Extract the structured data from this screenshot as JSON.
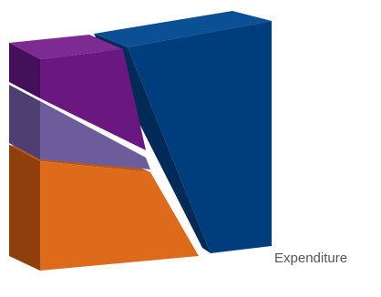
{
  "chart_data": {
    "type": "pie",
    "title": "",
    "label": "Expenditure",
    "slices": [
      {
        "value": 48,
        "color": "#003d7c",
        "side_color": "#002a58",
        "top_color": "#0b4f95"
      },
      {
        "value": 30,
        "color": "#de6b1b",
        "side_color": "#8f3f0c",
        "top_color": "#b85a16"
      },
      {
        "value": 9,
        "color": "#6d5c9b",
        "side_color": "#4d3f72",
        "top_color": "#857ab0"
      },
      {
        "value": 13,
        "color": "#6a1880",
        "side_color": "#45105a",
        "top_color": "#7d2a93"
      }
    ]
  }
}
